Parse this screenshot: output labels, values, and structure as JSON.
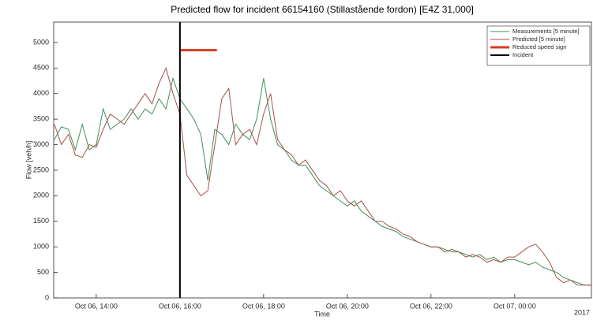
{
  "chart_data": {
    "type": "line",
    "title": "Predicted flow for incident 66154160 (Stillastående fordon) [E4Z 31,000]",
    "x_label": "Time",
    "y_label": "Flow [veh/h]",
    "x_annotation": "2017",
    "x": [
      "2017-10-06 13:00",
      "2017-10-06 13:10",
      "2017-10-06 13:20",
      "2017-10-06 13:30",
      "2017-10-06 13:40",
      "2017-10-06 13:50",
      "2017-10-06 14:00",
      "2017-10-06 14:10",
      "2017-10-06 14:20",
      "2017-10-06 14:30",
      "2017-10-06 14:40",
      "2017-10-06 14:50",
      "2017-10-06 15:00",
      "2017-10-06 15:10",
      "2017-10-06 15:20",
      "2017-10-06 15:30",
      "2017-10-06 15:40",
      "2017-10-06 15:50",
      "2017-10-06 16:00",
      "2017-10-06 16:10",
      "2017-10-06 16:20",
      "2017-10-06 16:30",
      "2017-10-06 16:40",
      "2017-10-06 16:50",
      "2017-10-06 17:00",
      "2017-10-06 17:10",
      "2017-10-06 17:20",
      "2017-10-06 17:30",
      "2017-10-06 17:40",
      "2017-10-06 17:50",
      "2017-10-06 18:00",
      "2017-10-06 18:10",
      "2017-10-06 18:20",
      "2017-10-06 18:30",
      "2017-10-06 18:40",
      "2017-10-06 18:50",
      "2017-10-06 19:00",
      "2017-10-06 19:10",
      "2017-10-06 19:20",
      "2017-10-06 19:30",
      "2017-10-06 19:40",
      "2017-10-06 19:50",
      "2017-10-06 20:00",
      "2017-10-06 20:10",
      "2017-10-06 20:20",
      "2017-10-06 20:30",
      "2017-10-06 20:40",
      "2017-10-06 20:50",
      "2017-10-06 21:00",
      "2017-10-06 21:10",
      "2017-10-06 21:20",
      "2017-10-06 21:30",
      "2017-10-06 21:40",
      "2017-10-06 21:50",
      "2017-10-06 22:00",
      "2017-10-06 22:10",
      "2017-10-06 22:20",
      "2017-10-06 22:30",
      "2017-10-06 22:40",
      "2017-10-06 22:50",
      "2017-10-06 23:00",
      "2017-10-06 23:10",
      "2017-10-06 23:20",
      "2017-10-06 23:30",
      "2017-10-06 23:40",
      "2017-10-06 23:50",
      "2017-10-07 00:00",
      "2017-10-07 00:10",
      "2017-10-07 00:20",
      "2017-10-07 00:30",
      "2017-10-07 00:40",
      "2017-10-07 00:50",
      "2017-10-07 01:00",
      "2017-10-07 01:10",
      "2017-10-07 01:20",
      "2017-10-07 01:30",
      "2017-10-07 01:40",
      "2017-10-07 01:50"
    ],
    "series": [
      {
        "name": "Measurements [5 minute]",
        "color": "#3f8f55",
        "values": [
          3100,
          3350,
          3300,
          2900,
          3400,
          2900,
          3000,
          3700,
          3300,
          3400,
          3500,
          3700,
          3500,
          3700,
          3600,
          3900,
          3700,
          4300,
          3900,
          3700,
          3500,
          3200,
          2300,
          3300,
          3200,
          3000,
          3400,
          3200,
          3100,
          3500,
          4300,
          3500,
          3000,
          2900,
          2700,
          2600,
          2600,
          2400,
          2200,
          2100,
          2000,
          1900,
          1800,
          1900,
          1700,
          1600,
          1500,
          1400,
          1350,
          1300,
          1200,
          1150,
          1100,
          1050,
          1000,
          1000,
          950,
          900,
          900,
          850,
          800,
          850,
          750,
          800,
          700,
          750,
          750,
          700,
          650,
          700,
          600,
          550,
          500,
          400,
          350,
          300,
          250,
          250
        ]
      },
      {
        "name": "Predicted [5 minute]",
        "color": "#a5504a",
        "values": [
          3400,
          3000,
          3200,
          2800,
          2750,
          3000,
          2950,
          3300,
          3600,
          3500,
          3400,
          3600,
          3800,
          4000,
          3800,
          4200,
          4500,
          4000,
          3600,
          2400,
          2200,
          2000,
          2100,
          3000,
          3900,
          4100,
          3000,
          3200,
          3300,
          3000,
          3600,
          4000,
          3100,
          2900,
          2800,
          2600,
          2700,
          2500,
          2300,
          2200,
          2000,
          2100,
          1900,
          1800,
          1900,
          1700,
          1500,
          1500,
          1400,
          1350,
          1250,
          1200,
          1100,
          1050,
          1000,
          1000,
          900,
          950,
          900,
          800,
          850,
          800,
          700,
          750,
          700,
          800,
          800,
          900,
          1000,
          1050,
          900,
          700,
          400,
          300,
          350,
          250,
          250,
          250
        ]
      }
    ],
    "reduced_speed_sign": {
      "name": "Reduced speed sign",
      "color": "#d93a1e",
      "x": [
        "2017-10-06 16:00",
        "2017-10-06 16:53"
      ],
      "y": 4850
    },
    "incident": {
      "name": "Incident",
      "color": "#000000",
      "x": "2017-10-06 16:00"
    },
    "xlim": [
      "2017-10-06 12:59",
      "2017-10-07 01:50"
    ],
    "xticks": [
      {
        "value": "2017-10-06 14:00",
        "label": "Oct 06, 14:00"
      },
      {
        "value": "2017-10-06 16:00",
        "label": "Oct 06, 16:00"
      },
      {
        "value": "2017-10-06 18:00",
        "label": "Oct 06, 18:00"
      },
      {
        "value": "2017-10-06 20:00",
        "label": "Oct 06, 20:00"
      },
      {
        "value": "2017-10-06 22:00",
        "label": "Oct 06, 22:00"
      },
      {
        "value": "2017-10-07 00:00",
        "label": "Oct 07, 00:00"
      }
    ],
    "ylim": [
      0,
      5400
    ],
    "yticks": [
      0,
      500,
      1000,
      1500,
      2000,
      2500,
      3000,
      3500,
      4000,
      4500,
      5000
    ],
    "grid": false,
    "legend": "upper right"
  }
}
